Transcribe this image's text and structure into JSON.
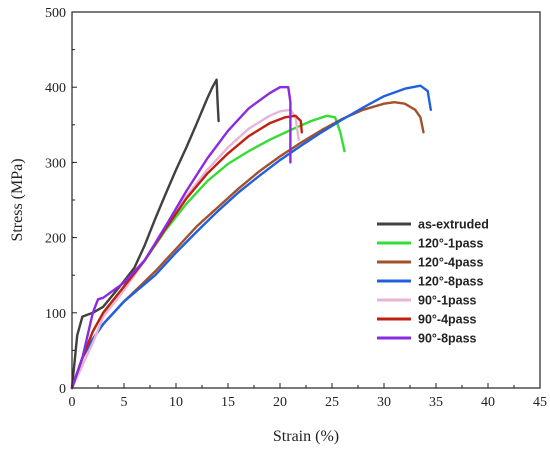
{
  "chart_data": {
    "type": "line",
    "title": "",
    "xlabel": "Strain (%)",
    "ylabel": "Stress (MPa)",
    "xlim": [
      0,
      45
    ],
    "ylim": [
      0,
      500
    ],
    "xticks": [
      "0",
      "5",
      "10",
      "15",
      "20",
      "25",
      "30",
      "35",
      "40",
      "45"
    ],
    "yticks": [
      "0",
      "100",
      "200",
      "300",
      "400",
      "500"
    ],
    "grid": false,
    "legend_position": "right-center",
    "series": [
      {
        "name": "as-extruded",
        "color": "#404040",
        "x": [
          0,
          0.5,
          1.0,
          2,
          3,
          4,
          5,
          6,
          7,
          8,
          9,
          10,
          11,
          12,
          13,
          13.5,
          13.9,
          14.0,
          14.1
        ],
        "y": [
          0,
          70,
          95,
          100,
          108,
          125,
          142,
          160,
          190,
          225,
          258,
          290,
          320,
          352,
          385,
          400,
          410,
          380,
          355
        ]
      },
      {
        "name": "120°-1pass",
        "color": "#33dd33",
        "x": [
          0,
          1,
          2,
          3,
          5,
          7,
          9,
          11,
          13,
          15,
          17,
          19,
          21,
          23,
          24.5,
          25.3,
          25.8,
          26.2
        ],
        "y": [
          0,
          40,
          75,
          100,
          135,
          170,
          210,
          245,
          275,
          298,
          315,
          330,
          343,
          355,
          362,
          360,
          340,
          315
        ]
      },
      {
        "name": "120°-4pass",
        "color": "#a0522d",
        "x": [
          0,
          1,
          2,
          3,
          5,
          8,
          10,
          12,
          14,
          16,
          18,
          20,
          22,
          24,
          26,
          28,
          30,
          31,
          32,
          33,
          33.5,
          33.8
        ],
        "y": [
          0,
          40,
          65,
          85,
          115,
          155,
          185,
          215,
          240,
          265,
          288,
          308,
          326,
          343,
          358,
          370,
          378,
          380,
          378,
          370,
          360,
          340
        ]
      },
      {
        "name": "120°-8pass",
        "color": "#2060e0",
        "x": [
          0,
          1,
          2,
          3,
          5,
          8,
          10,
          12,
          14,
          16,
          18,
          20,
          22,
          24,
          26,
          28,
          30,
          32,
          33.5,
          34.2,
          34.5
        ],
        "y": [
          0,
          40,
          65,
          85,
          115,
          150,
          180,
          208,
          235,
          260,
          282,
          303,
          322,
          340,
          357,
          373,
          388,
          398,
          402,
          395,
          370
        ]
      },
      {
        "name": "90°-1pass",
        "color": "#e8b4d8",
        "x": [
          0,
          1,
          2,
          3,
          5,
          7,
          9,
          11,
          13,
          15,
          17,
          19,
          20,
          21,
          21.5,
          21.8
        ],
        "y": [
          0,
          30,
          60,
          95,
          130,
          170,
          215,
          255,
          290,
          320,
          345,
          362,
          368,
          370,
          360,
          330
        ]
      },
      {
        "name": "90°-4pass",
        "color": "#c02010",
        "x": [
          0,
          1,
          2,
          3,
          5,
          7,
          9,
          11,
          13,
          15,
          17,
          19,
          20.5,
          21.5,
          22,
          22.1
        ],
        "y": [
          0,
          40,
          75,
          100,
          135,
          170,
          212,
          252,
          285,
          312,
          335,
          352,
          360,
          362,
          355,
          340
        ]
      },
      {
        "name": "90°-8pass",
        "color": "#8a2be2",
        "x": [
          0,
          1,
          2,
          2.5,
          3,
          5,
          7,
          9,
          11,
          13,
          15,
          17,
          19,
          20,
          20.8,
          21.0,
          21.0
        ],
        "y": [
          0,
          40,
          100,
          118,
          120,
          140,
          170,
          215,
          262,
          305,
          342,
          372,
          392,
          400,
          400,
          380,
          300
        ]
      }
    ]
  }
}
